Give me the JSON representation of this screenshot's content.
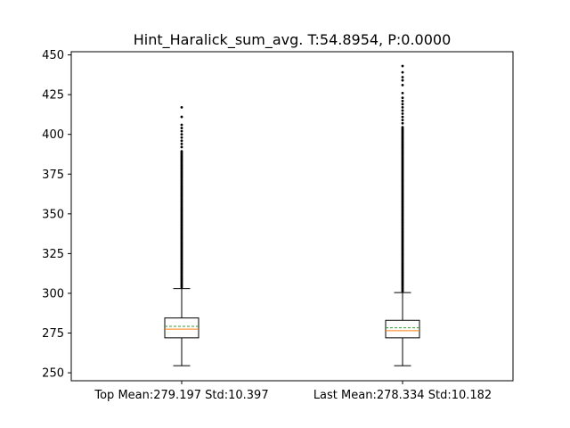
{
  "chart_data": {
    "type": "boxplot",
    "title": "Hint_Haralick_sum_avg. T:54.8954, P:0.0000",
    "xlabel": "",
    "ylabel": "",
    "ylim": [
      245,
      452
    ],
    "yticks": [
      250,
      275,
      300,
      325,
      350,
      375,
      400,
      425,
      450
    ],
    "grid": false,
    "categories": [
      "Top Mean:279.197 Std:10.397",
      "Last Mean:278.334 Std:10.182"
    ],
    "boxes": [
      {
        "whisker_low": 254.5,
        "q1": 272,
        "median": 277.5,
        "mean": 279.197,
        "q3": 284.5,
        "whisker_high": 303,
        "outliers_continuous_to": 390,
        "outliers_sparse": [
          392,
          394,
          396,
          398,
          400,
          402,
          404,
          406,
          411,
          417
        ]
      },
      {
        "whisker_low": 254.5,
        "q1": 272,
        "median": 276.5,
        "mean": 278.334,
        "q3": 283,
        "whisker_high": 300.5,
        "outliers_continuous_to": 405,
        "outliers_sparse": [
          407,
          409,
          411,
          413,
          415,
          417,
          419,
          421,
          423,
          426,
          431,
          434,
          436,
          439,
          443
        ]
      }
    ],
    "colors": {
      "box": "#000000",
      "median": "#ff7f0e",
      "mean": "#2ca02c",
      "outlier": "#000000"
    }
  }
}
